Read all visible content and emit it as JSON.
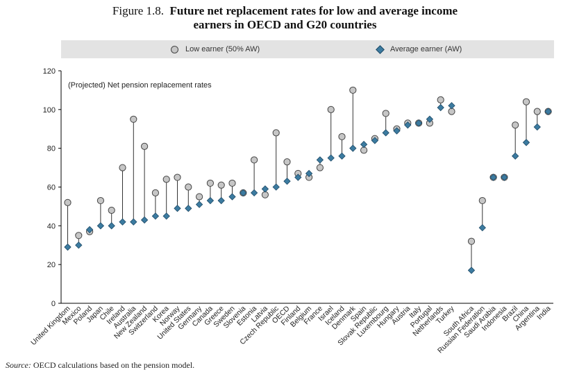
{
  "figure": {
    "number": "Figure 1.8.",
    "title_line1": "Future net replacement rates for low and average income",
    "title_line2": "earners in OECD and G20 countries"
  },
  "legend": {
    "low": "Low earner (50% AW)",
    "avg": "Average earner (AW)"
  },
  "source": {
    "label": "Source:",
    "text": "OECD calculations based on the pension model."
  },
  "colors": {
    "low_fill": "#c6c6c6",
    "avg_fill": "#3c7ba0",
    "legend_bg": "#e3e3e3",
    "axis": "#000000"
  },
  "chart_data": {
    "type": "scatter",
    "annotation": "(Projected) Net pension replacement rates",
    "ylim": [
      0,
      120
    ],
    "yticks": [
      0,
      20,
      40,
      60,
      80,
      100,
      120
    ],
    "grid": false,
    "legend_position": "top",
    "groups": [
      [
        "United Kingdom",
        "Mexico",
        "Poland",
        "Japan",
        "Chile",
        "Ireland",
        "Australia",
        "New Zealand",
        "Switzerland",
        "Korea",
        "Norway",
        "United States",
        "Germany",
        "Canada",
        "Greece",
        "Sweden",
        "Slovenia",
        "Estonia",
        "Latvia",
        "Czech Republic",
        "OECD",
        "Finland",
        "Belgium",
        "France",
        "Israel",
        "Iceland",
        "Denmark",
        "Spain",
        "Slovak Republic",
        "Luxembourg",
        "Hungary",
        "Austria",
        "Italy",
        "Portugal",
        "Netherlands",
        "Turkey"
      ],
      [
        "South Africa",
        "Russian Federation",
        "Saudi Arabia",
        "Indonesia",
        "Brazil",
        "China",
        "Argentina",
        "India"
      ]
    ],
    "categories": [
      "United Kingdom",
      "Mexico",
      "Poland",
      "Japan",
      "Chile",
      "Ireland",
      "Australia",
      "New Zealand",
      "Switzerland",
      "Korea",
      "Norway",
      "United States",
      "Germany",
      "Canada",
      "Greece",
      "Sweden",
      "Slovenia",
      "Estonia",
      "Latvia",
      "Czech Republic",
      "OECD",
      "Finland",
      "Belgium",
      "France",
      "Israel",
      "Iceland",
      "Denmark",
      "Spain",
      "Slovak Republic",
      "Luxembourg",
      "Hungary",
      "Austria",
      "Italy",
      "Portugal",
      "Netherlands",
      "Turkey",
      "South Africa",
      "Russian Federation",
      "Saudi Arabia",
      "Indonesia",
      "Brazil",
      "China",
      "Argentina",
      "India"
    ],
    "series": [
      {
        "name": "Low earner (50% AW)",
        "marker": "circle",
        "values": [
          52,
          35,
          37,
          53,
          48,
          70,
          95,
          81,
          57,
          64,
          65,
          60,
          55,
          62,
          61,
          62,
          57,
          74,
          56,
          88,
          73,
          67,
          65,
          70,
          100,
          86,
          110,
          79,
          85,
          98,
          90,
          93,
          93,
          93,
          105,
          99,
          32,
          53,
          65,
          65,
          92,
          104,
          99,
          99
        ]
      },
      {
        "name": "Average earner (AW)",
        "marker": "diamond",
        "values": [
          29,
          30,
          38,
          40,
          40,
          42,
          42,
          43,
          45,
          45,
          49,
          49,
          51,
          53,
          53,
          55,
          57,
          57,
          59,
          60,
          63,
          65,
          67,
          74,
          75,
          76,
          80,
          82,
          84,
          88,
          89,
          92,
          93,
          95,
          101,
          102,
          17,
          39,
          65,
          65,
          76,
          83,
          91,
          99
        ]
      }
    ]
  }
}
